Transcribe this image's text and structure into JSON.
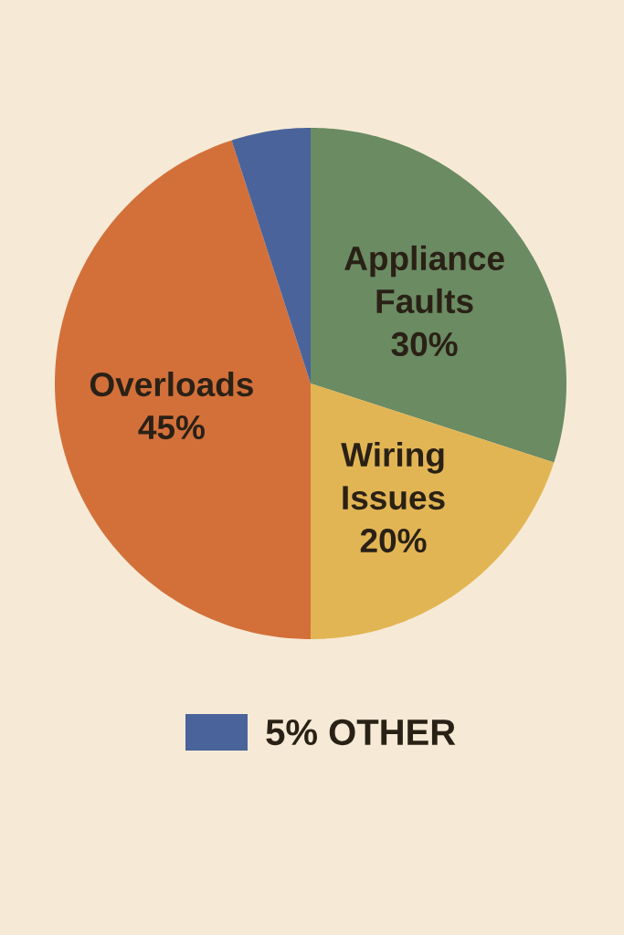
{
  "chart_data": {
    "type": "pie",
    "categories": [
      "Appliance Faults",
      "Wiring Issues",
      "Overloads",
      "OTHER"
    ],
    "values": [
      30,
      20,
      45,
      5
    ],
    "value_labels": [
      "30%",
      "20%",
      "45%",
      "5%"
    ],
    "colors": [
      "#6b8b62",
      "#e2b554",
      "#d3703a",
      "#4a639a"
    ],
    "legend": "bottom"
  }
}
